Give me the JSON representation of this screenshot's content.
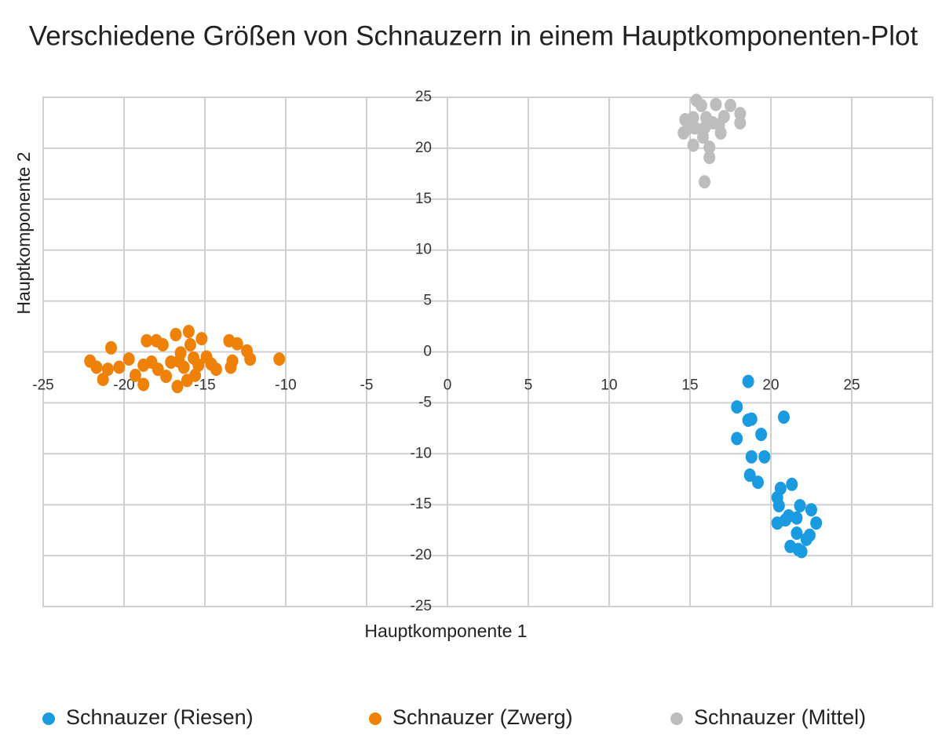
{
  "chart_data": {
    "type": "scatter",
    "title": "Verschiedene Größen von Schnauzern in einem Hauptkomponenten-Plot",
    "x_label": "Hauptkomponente 1",
    "y_label": "Hauptkomponente 2",
    "xlim": [
      -25,
      30
    ],
    "ylim": [
      -25,
      25
    ],
    "xticks": [
      -25,
      -20,
      -15,
      -10,
      -5,
      0,
      5,
      10,
      15,
      20,
      25
    ],
    "yticks": [
      -25,
      -20,
      -15,
      -10,
      -5,
      0,
      5,
      10,
      15,
      20,
      25
    ],
    "grid": true,
    "legend": "bottom",
    "series": [
      {
        "name": "Schnauzer (Riesen)",
        "color": "#1a9be0",
        "x": [
          18.6,
          17.9,
          18.6,
          18.8,
          20.8,
          17.9,
          19.4,
          18.8,
          19.6,
          18.7,
          19.2,
          21.3,
          20.6,
          20.4,
          20.5,
          21.8,
          22.5,
          21.1,
          21.6,
          20.4,
          20.9,
          22.8,
          21.6,
          22.2,
          21.2,
          21.7,
          21.9,
          22.4
        ],
        "y": [
          -2.9,
          -5.4,
          -6.7,
          -6.6,
          -6.4,
          -8.5,
          -8.1,
          -10.3,
          -10.3,
          -12.1,
          -12.8,
          -13.0,
          -13.4,
          -14.3,
          -15.1,
          -15.1,
          -15.5,
          -16.1,
          -16.3,
          -16.8,
          -16.5,
          -16.8,
          -17.8,
          -18.4,
          -19.1,
          -19.4,
          -19.6,
          -18.0
        ]
      },
      {
        "name": "Schnauzer (Zwerg)",
        "color": "#ee8208",
        "x": [
          -22.1,
          -21.7,
          -21.0,
          -20.8,
          -21.3,
          -20.3,
          -19.7,
          -19.3,
          -18.8,
          -18.6,
          -18.0,
          -18.3,
          -17.9,
          -17.4,
          -17.1,
          -16.8,
          -16.7,
          -16.5,
          -16.3,
          -16.0,
          -15.9,
          -15.7,
          -15.6,
          -16.1,
          -15.2,
          -14.9,
          -14.6,
          -14.3,
          -13.5,
          -13.3,
          -13.0,
          -13.4,
          -12.4,
          -12.2,
          -10.4,
          -17.6,
          -16.6,
          -15.4,
          -18.8
        ],
        "y": [
          -0.9,
          -1.5,
          -1.7,
          0.4,
          -2.7,
          -1.5,
          -0.7,
          -2.3,
          -1.3,
          1.1,
          1.1,
          -1.0,
          -1.7,
          -2.4,
          -1.0,
          1.7,
          -3.4,
          -0.1,
          -1.5,
          2.0,
          0.7,
          -0.6,
          -2.3,
          -2.8,
          1.3,
          -0.5,
          -1.2,
          -1.7,
          1.1,
          -0.9,
          0.8,
          -1.5,
          0.1,
          -0.7,
          -0.7,
          0.7,
          -0.9,
          -1.3,
          -3.2
        ]
      },
      {
        "name": "Schnauzer (Mittel)",
        "color": "#bdbdbd",
        "x": [
          15.4,
          15.7,
          16.6,
          17.5,
          14.7,
          15.2,
          16.0,
          17.1,
          18.1,
          14.6,
          15.3,
          15.9,
          16.4,
          16.9,
          18.1,
          15.2,
          15.8,
          16.2,
          16.8,
          16.2,
          15.9,
          14.9
        ],
        "y": [
          24.7,
          24.2,
          24.3,
          24.2,
          22.8,
          23.0,
          23.0,
          23.1,
          23.4,
          21.5,
          22.0,
          22.0,
          22.5,
          21.5,
          22.5,
          20.3,
          21.1,
          20.1,
          22.3,
          19.1,
          16.7,
          22.0
        ]
      }
    ]
  }
}
